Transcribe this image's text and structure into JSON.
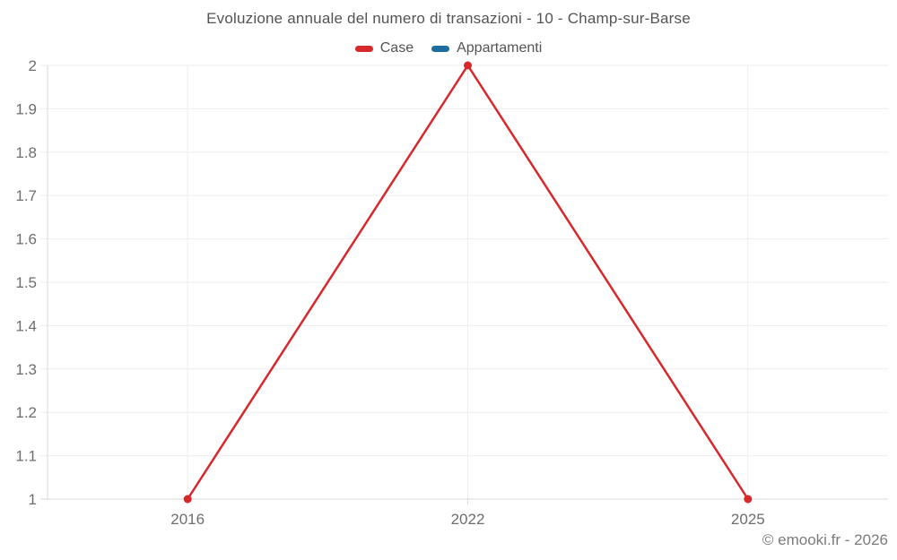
{
  "chart_data": {
    "type": "line",
    "title": "Evoluzione annuale del numero di transazioni - 10 - Champ-sur-Barse",
    "categories": [
      "2016",
      "2022",
      "2025"
    ],
    "series": [
      {
        "name": "Case",
        "color": "#d7282c",
        "values": [
          1,
          2,
          1
        ]
      },
      {
        "name": "Appartamenti",
        "color": "#1c6e9e",
        "values": []
      }
    ],
    "ylim": [
      1,
      2
    ],
    "ytick_values": [
      1,
      1.1,
      1.2,
      1.3,
      1.4,
      1.5,
      1.6,
      1.7,
      1.8,
      1.9,
      2
    ],
    "ytick_labels": [
      "1",
      "1.1",
      "1.2",
      "1.3",
      "1.4",
      "1.5",
      "1.6",
      "1.7",
      "1.8",
      "1.9",
      "2"
    ],
    "xlabel": "",
    "ylabel": "",
    "grid": true,
    "legend_position": "top"
  },
  "footer": {
    "text": "© emooki.fr - 2026"
  }
}
